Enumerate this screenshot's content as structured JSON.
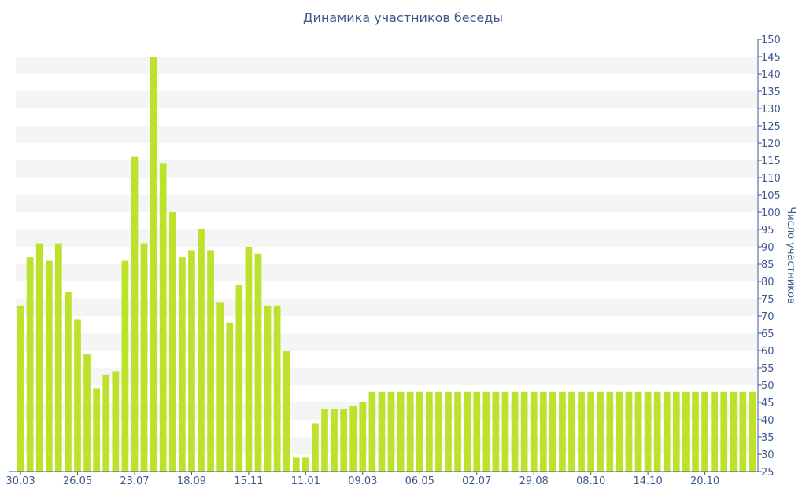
{
  "chart_data": {
    "type": "bar",
    "title": "Динамика участников беседы",
    "ylabel": "Число участников",
    "xlabel": "",
    "ylim": [
      25,
      150
    ],
    "ytick_step": 5,
    "y_axis_side": "right",
    "bar_color": "#bde22d",
    "axis_color": "#3d5a8f",
    "band_color": "#f5f5f5",
    "x_tick_labels": [
      {
        "index": 0,
        "label": "30.03"
      },
      {
        "index": 6,
        "label": "26.05"
      },
      {
        "index": 12,
        "label": "23.07"
      },
      {
        "index": 18,
        "label": "18.09"
      },
      {
        "index": 24,
        "label": "15.11"
      },
      {
        "index": 30,
        "label": "11.01"
      },
      {
        "index": 36,
        "label": "09.03"
      },
      {
        "index": 42,
        "label": "06.05"
      },
      {
        "index": 48,
        "label": "02.07"
      },
      {
        "index": 54,
        "label": "29.08"
      },
      {
        "index": 60,
        "label": "08.10"
      },
      {
        "index": 66,
        "label": "14.10"
      },
      {
        "index": 72,
        "label": "20.10"
      }
    ],
    "values": [
      73,
      87,
      91,
      86,
      91,
      77,
      69,
      59,
      49,
      53,
      54,
      86,
      116,
      91,
      145,
      114,
      100,
      87,
      89,
      95,
      89,
      74,
      68,
      79,
      90,
      88,
      73,
      73,
      60,
      29,
      29,
      39,
      43,
      43,
      43,
      44,
      45,
      48,
      48,
      48,
      48,
      48,
      48,
      48,
      48,
      48,
      48,
      48,
      48,
      48,
      48,
      48,
      48,
      48,
      48,
      48,
      48,
      48,
      48,
      48,
      48,
      48,
      48,
      48,
      48,
      48,
      48,
      48,
      48,
      48,
      48,
      48,
      48,
      48,
      48,
      48,
      48,
      48
    ]
  }
}
